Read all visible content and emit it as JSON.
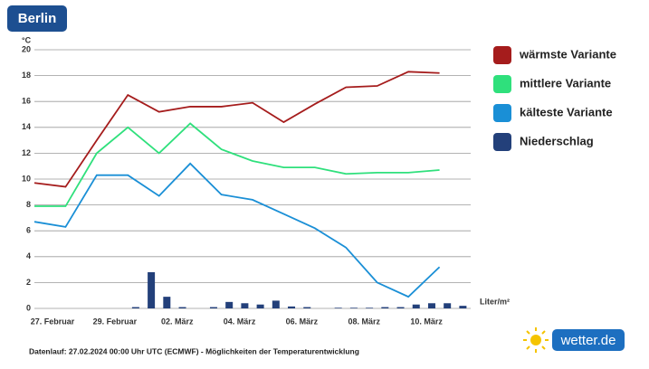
{
  "title": "Berlin",
  "footer": "Datenlauf: 27.02.2024 00:00 Uhr UTC (ECMWF) - Möglichkeiten der Temperaturentwicklung",
  "logo": "wetter.de",
  "chart_data": [
    {
      "type": "line",
      "y_label": "°C",
      "categories": [
        "27. Februar",
        null,
        "29. Februar",
        null,
        "02. März",
        null,
        "04. März",
        null,
        "06. März",
        null,
        "08. März",
        null,
        "10. März",
        null
      ],
      "ylim": [
        0,
        20
      ],
      "yticks": [
        0,
        2,
        4,
        6,
        8,
        10,
        12,
        14,
        16,
        18,
        20
      ],
      "grid": true,
      "series": [
        {
          "name": "wärmste Variante",
          "color": "#a51c1c",
          "values": [
            9.7,
            9.4,
            13.0,
            16.5,
            15.2,
            15.6,
            15.6,
            15.9,
            14.4,
            15.8,
            17.1,
            17.2,
            18.3,
            18.2
          ]
        },
        {
          "name": "mittlere Variante",
          "color": "#2fe07c",
          "values": [
            7.9,
            7.9,
            12.0,
            14.0,
            12.0,
            14.3,
            12.3,
            11.4,
            10.9,
            10.9,
            10.4,
            10.5,
            10.5,
            10.7
          ]
        },
        {
          "name": "kälteste Variante",
          "color": "#1a8fd6",
          "values": [
            6.7,
            6.3,
            10.3,
            10.3,
            8.7,
            11.2,
            8.8,
            8.4,
            7.3,
            6.2,
            4.7,
            2.0,
            0.9,
            3.2
          ]
        }
      ]
    },
    {
      "type": "bar",
      "unit_label": "Liter/m²",
      "categories": [
        null,
        null,
        null,
        null,
        null,
        null,
        null,
        null,
        null,
        null,
        null,
        null,
        null,
        null,
        null,
        null,
        null,
        null,
        null,
        null,
        null,
        null,
        null,
        null,
        null,
        null,
        null,
        null
      ],
      "ylim": [
        0,
        20
      ],
      "series": [
        {
          "name": "Niederschlag",
          "color": "#23407a",
          "values": [
            0,
            0,
            0,
            0,
            0,
            0,
            0.1,
            2.8,
            0.9,
            0.1,
            0,
            0.1,
            0.5,
            0.4,
            0.3,
            0.6,
            0.15,
            0.1,
            0,
            0.05,
            0.05,
            0.05,
            0.1,
            0.1,
            0.3,
            0.4,
            0.4,
            0.2
          ]
        }
      ]
    }
  ]
}
